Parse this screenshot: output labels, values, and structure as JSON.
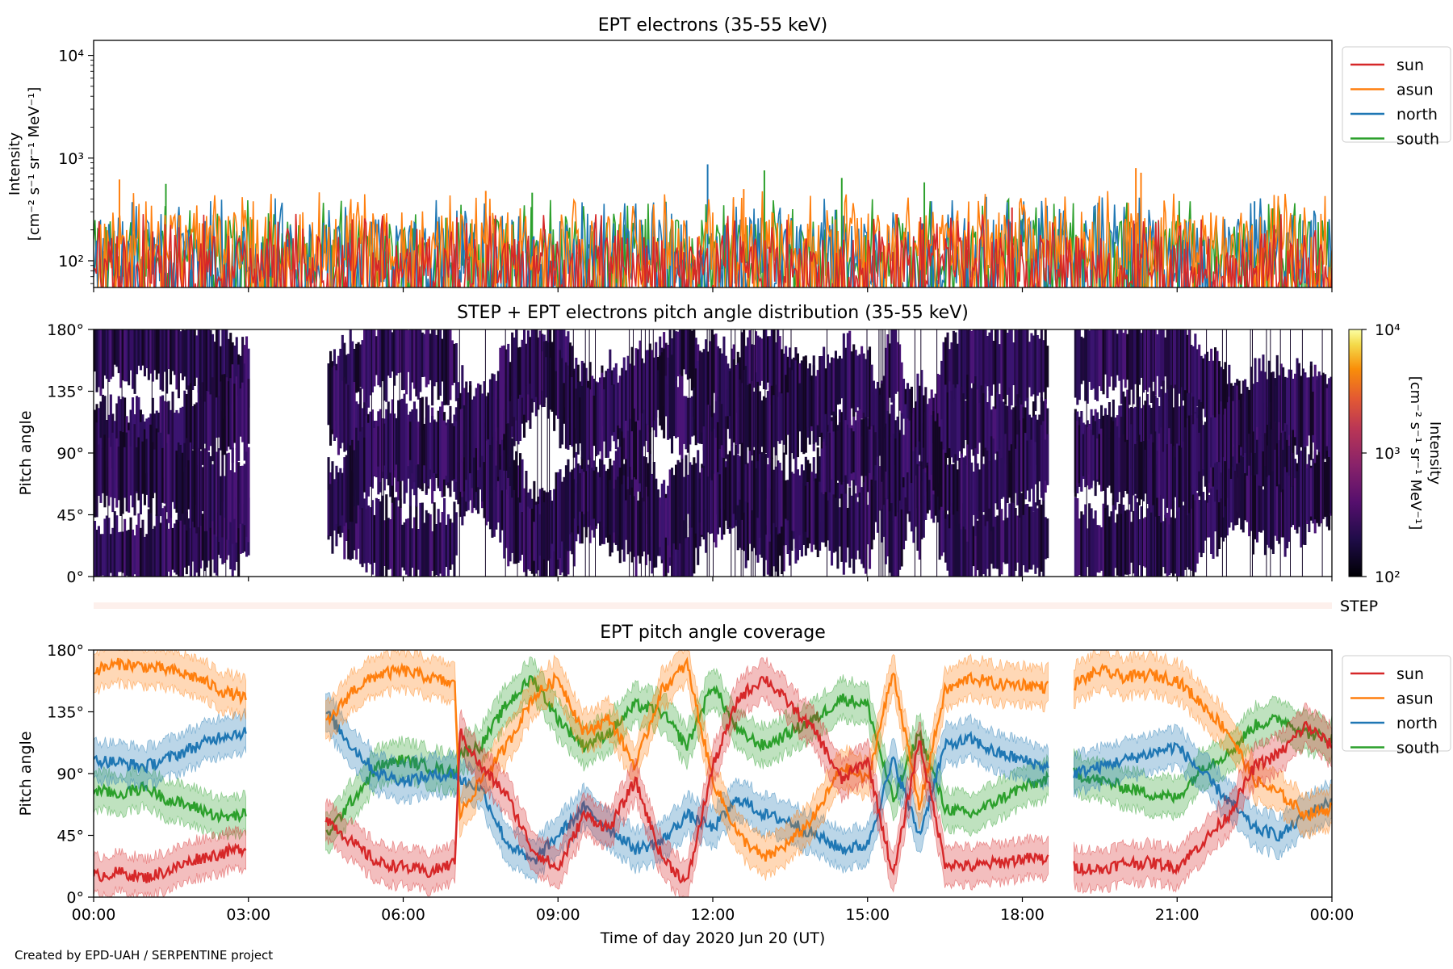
{
  "footer_text": "Created by EPD-UAH / SERPENTINE project",
  "colors": {
    "sun": "#d62728",
    "asun": "#ff7f0e",
    "north": "#1f77b4",
    "south": "#2ca02c",
    "step_strip": "#fdf0ec"
  },
  "chart_data": [
    {
      "type": "line",
      "title": "EPT electrons (35-55 keV)",
      "ylabel_line1": "Intensity",
      "ylabel_line2": "[cm⁻² s⁻¹ sr⁻¹ MeV⁻¹]",
      "yscale": "log",
      "ylim": [
        55,
        14000
      ],
      "yticks": [
        {
          "value": 100,
          "label": "10²"
        },
        {
          "value": 1000,
          "label": "10³"
        },
        {
          "value": 10000,
          "label": "10⁴"
        }
      ],
      "xlim_hours": [
        0,
        24
      ],
      "legend_placement": "outside-right",
      "series": [
        {
          "name": "sun",
          "typical": [
            55,
            180
          ],
          "spikes": [
            [
              17.8,
              330
            ]
          ]
        },
        {
          "name": "asun",
          "typical": [
            80,
            300
          ],
          "spikes": [
            [
              0.5,
              620
            ],
            [
              7.6,
              480
            ],
            [
              20.2,
              800
            ],
            [
              20.3,
              720
            ],
            [
              12.6,
              500
            ]
          ]
        },
        {
          "name": "north",
          "typical": [
            60,
            260
          ],
          "spikes": [
            [
              11.9,
              870
            ],
            [
              17.3,
              420
            ],
            [
              22.5,
              380
            ]
          ]
        },
        {
          "name": "south",
          "typical": [
            70,
            250
          ],
          "spikes": [
            [
              1.4,
              560
            ],
            [
              13.0,
              760
            ],
            [
              14.5,
              640
            ],
            [
              16.1,
              580
            ],
            [
              8.5,
              460
            ]
          ]
        }
      ],
      "data_gaps_hours": []
    },
    {
      "type": "heatmap",
      "title": "STEP + EPT electrons pitch angle distribution (35-55 keV)",
      "ylabel": "Pitch angle",
      "ylim": [
        0,
        180
      ],
      "yticks": [
        {
          "value": 0,
          "label": "0°"
        },
        {
          "value": 45,
          "label": "45°"
        },
        {
          "value": 90,
          "label": "90°"
        },
        {
          "value": 135,
          "label": "135°"
        },
        {
          "value": 180,
          "label": "180°"
        }
      ],
      "xlim_hours": [
        0,
        24
      ],
      "colorbar": {
        "label_line1": "Intensity",
        "label_line2": "[cm⁻² s⁻¹ sr⁻¹ MeV⁻¹]",
        "scale": "log",
        "range": [
          100,
          10000
        ],
        "colormap": "inferno",
        "ticks": [
          {
            "value": 100,
            "label": "10²"
          },
          {
            "value": 1000,
            "label": "10³"
          },
          {
            "value": 10000,
            "label": "10⁴"
          }
        ]
      },
      "data_gaps_hours": [
        [
          3.0,
          4.5
        ],
        [
          18.5,
          19.0
        ]
      ]
    },
    {
      "type": "bar",
      "label": "STEP",
      "xlim_hours": [
        0,
        24
      ]
    },
    {
      "type": "line",
      "title": "EPT pitch angle coverage",
      "ylabel": "Pitch angle",
      "xlabel": "Time of day 2020 Jun 20 (UT)",
      "ylim": [
        0,
        180
      ],
      "yticks": [
        {
          "value": 0,
          "label": "0°"
        },
        {
          "value": 45,
          "label": "45°"
        },
        {
          "value": 90,
          "label": "90°"
        },
        {
          "value": 135,
          "label": "135°"
        },
        {
          "value": 180,
          "label": "180°"
        }
      ],
      "xlim_hours": [
        0,
        24
      ],
      "xticks": [
        {
          "value": 0,
          "label": "00:00"
        },
        {
          "value": 3,
          "label": "03:00"
        },
        {
          "value": 6,
          "label": "06:00"
        },
        {
          "value": 9,
          "label": "09:00"
        },
        {
          "value": 12,
          "label": "12:00"
        },
        {
          "value": 15,
          "label": "15:00"
        },
        {
          "value": 18,
          "label": "18:00"
        },
        {
          "value": 21,
          "label": "21:00"
        },
        {
          "value": 24,
          "label": "00:00"
        }
      ],
      "legend_placement": "outside-right",
      "data_gaps_hours": [
        [
          3.0,
          4.5
        ],
        [
          18.5,
          19.0
        ]
      ],
      "series": [
        {
          "name": "sun",
          "x": [
            0,
            0.5,
            1,
            1.5,
            2,
            2.5,
            2.95,
            4.5,
            5,
            5.5,
            6,
            6.5,
            7,
            7.1,
            7.5,
            8,
            8.5,
            9,
            9.5,
            10,
            10.5,
            11,
            11.5,
            12,
            12.5,
            13,
            13.5,
            14,
            14.5,
            15,
            15.5,
            16,
            16.5,
            17,
            17.5,
            18,
            18.45,
            19,
            19.5,
            20,
            20.5,
            21,
            21.5,
            22,
            22.5,
            23,
            23.5,
            24
          ],
          "y": [
            15,
            18,
            14,
            20,
            28,
            32,
            36,
            58,
            40,
            25,
            22,
            18,
            25,
            120,
            95,
            75,
            35,
            20,
            60,
            50,
            85,
            30,
            10,
            95,
            145,
            160,
            140,
            120,
            85,
            100,
            15,
            115,
            25,
            22,
            25,
            28,
            28,
            22,
            20,
            25,
            25,
            22,
            40,
            60,
            95,
            105,
            125,
            110
          ]
        },
        {
          "name": "asun",
          "x": [
            0,
            0.5,
            1,
            1.5,
            2,
            2.5,
            2.95,
            4.5,
            5,
            5.5,
            6,
            6.5,
            7,
            7.1,
            7.5,
            8,
            8.5,
            9,
            9.5,
            10,
            10.5,
            11,
            11.5,
            12,
            12.5,
            13,
            13.5,
            14,
            14.5,
            15,
            15.5,
            16,
            16.5,
            17,
            17.5,
            18,
            18.45,
            19,
            19.5,
            20,
            20.5,
            21,
            21.5,
            22,
            22.5,
            23,
            23.5,
            24
          ],
          "y": [
            165,
            170,
            168,
            165,
            160,
            150,
            145,
            125,
            150,
            162,
            165,
            160,
            155,
            60,
            85,
            110,
            145,
            160,
            120,
            130,
            95,
            150,
            170,
            85,
            45,
            28,
            40,
            60,
            95,
            85,
            165,
            65,
            150,
            160,
            155,
            155,
            153,
            155,
            165,
            160,
            162,
            158,
            140,
            120,
            85,
            75,
            60,
            65
          ]
        },
        {
          "name": "north",
          "x": [
            0,
            0.5,
            1,
            1.5,
            2,
            2.5,
            2.95,
            4.5,
            5,
            5.5,
            6,
            6.5,
            7,
            7.1,
            7.5,
            8,
            8.5,
            9,
            9.5,
            10,
            10.5,
            11,
            11.5,
            12,
            12.5,
            13,
            13.5,
            14,
            14.5,
            15,
            15.5,
            16,
            16.5,
            17,
            17.5,
            18,
            18.45,
            19,
            19.5,
            20,
            20.5,
            21,
            21.5,
            22,
            22.5,
            23,
            23.5,
            24
          ],
          "y": [
            100,
            98,
            95,
            102,
            110,
            118,
            120,
            135,
            110,
            90,
            85,
            88,
            90,
            85,
            80,
            40,
            25,
            45,
            65,
            50,
            35,
            40,
            60,
            50,
            72,
            60,
            55,
            45,
            35,
            38,
            100,
            45,
            110,
            115,
            105,
            100,
            95,
            90,
            95,
            100,
            105,
            110,
            90,
            70,
            50,
            45,
            60,
            70
          ]
        },
        {
          "name": "south",
          "x": [
            0,
            0.5,
            1,
            1.5,
            2,
            2.5,
            2.95,
            4.5,
            5,
            5.5,
            6,
            6.5,
            7,
            7.1,
            7.5,
            8,
            8.5,
            9,
            9.5,
            10,
            10.5,
            11,
            11.5,
            12,
            12.5,
            13,
            13.5,
            14,
            14.5,
            15,
            15.5,
            16,
            16.5,
            17,
            17.5,
            18,
            18.45,
            19,
            19.5,
            20,
            20.5,
            21,
            21.5,
            22,
            22.5,
            23,
            23.5,
            24
          ],
          "y": [
            78,
            75,
            80,
            70,
            65,
            58,
            60,
            45,
            70,
            95,
            100,
            95,
            90,
            105,
            110,
            140,
            160,
            130,
            110,
            120,
            140,
            135,
            110,
            155,
            120,
            110,
            120,
            130,
            145,
            140,
            70,
            120,
            65,
            60,
            70,
            80,
            85,
            90,
            85,
            80,
            75,
            72,
            95,
            105,
            125,
            130,
            120,
            115
          ]
        }
      ]
    }
  ]
}
